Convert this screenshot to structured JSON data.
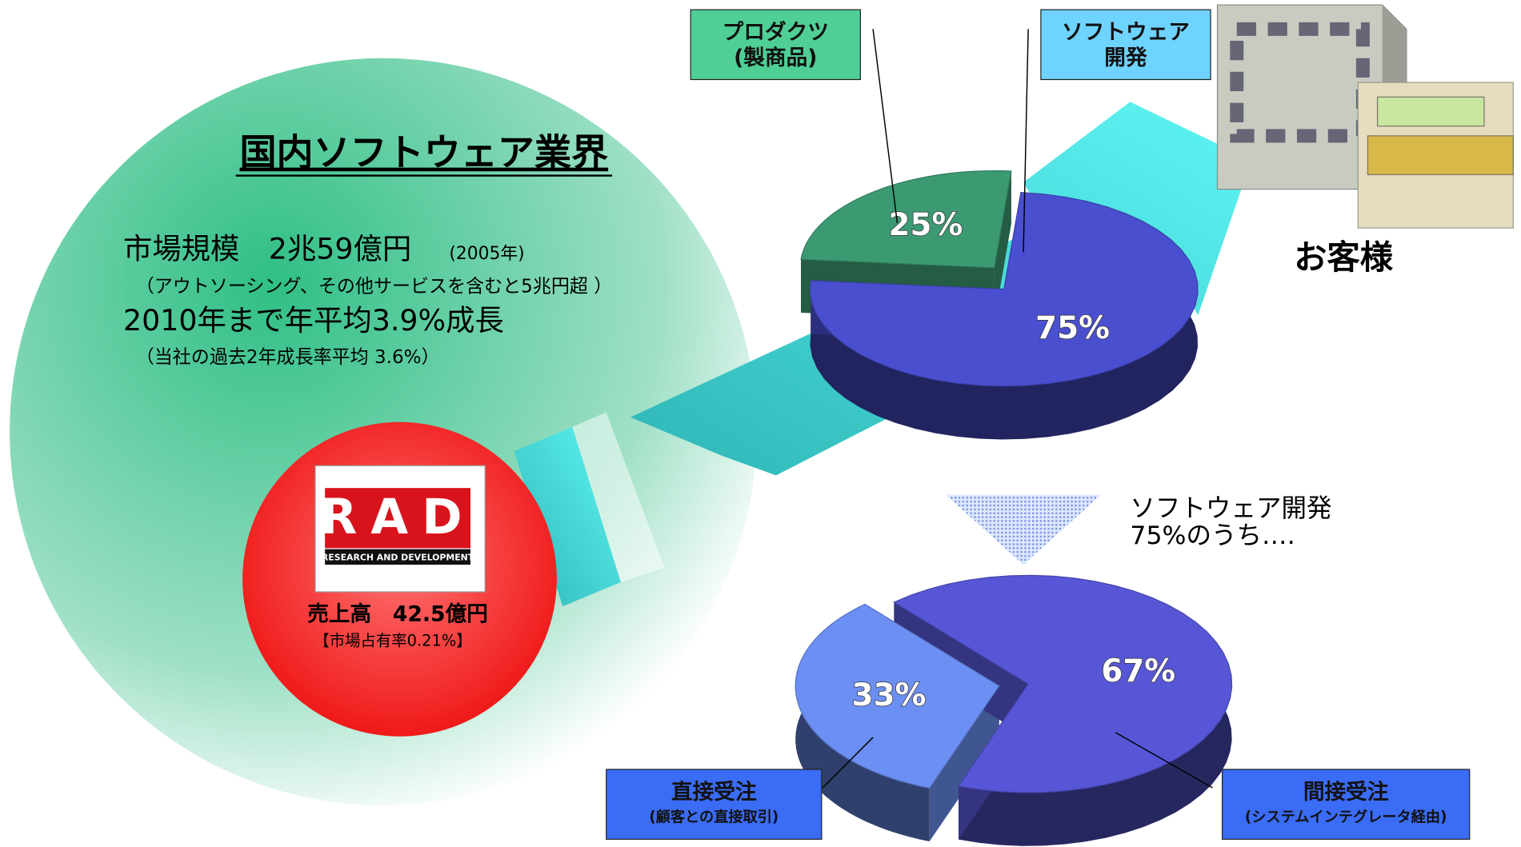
{
  "industry": {
    "title": "国内ソフトウェア業界",
    "market_size": "市場規模　2兆59億円",
    "market_year": "(2005年)",
    "market_note": "（アウトソーシング、その他サービスを含むと5兆円超 ）",
    "growth": "2010年まで年平均3.9%成長",
    "growth_note": "（当社の過去2年成長率平均 3.6%）"
  },
  "company": {
    "logo": "RAD",
    "logo_sub": "RESEARCH AND DEVELOPMENT",
    "sales": "売上高　42.5億円",
    "share": "【市場占有率0.21%】"
  },
  "customer": "お客様",
  "chart_data": [
    {
      "type": "pie",
      "categories": [
        "プロダクツ\n(製商品)",
        "ソフトウェア\n開発"
      ],
      "values": [
        25,
        75
      ],
      "value_labels": [
        "25%",
        "75%"
      ],
      "colors": [
        "#3c9a72",
        "#4a4fd0"
      ],
      "label_colors": [
        "#4fcf95",
        "#6fd3ff"
      ]
    },
    {
      "type": "pie",
      "annotation": "ソフトウェア開発\n75%のうち‥‥",
      "categories": [
        "直接受注\n(顧客との直接取引)",
        "間接受注\n(システムインテグレータ経由)"
      ],
      "values": [
        33,
        67
      ],
      "value_labels": [
        "33%",
        "67%"
      ],
      "colors": [
        "#6b8ff2",
        "#5656d6"
      ],
      "label_colors": [
        "#3a6cf5",
        "#3a6cf5"
      ]
    }
  ]
}
